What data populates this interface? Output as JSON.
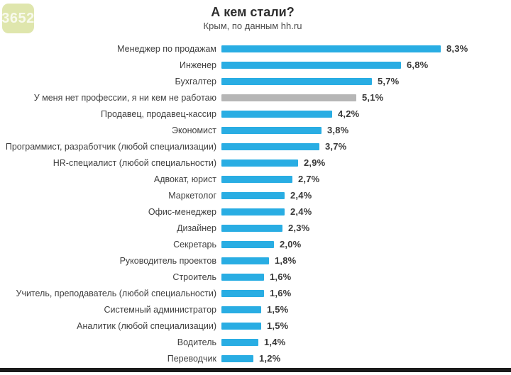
{
  "watermark": {
    "text": "3652"
  },
  "header": {
    "title": "А кем стали?",
    "subtitle": "Крым, по данным hh.ru"
  },
  "chart_data": {
    "type": "bar",
    "orientation": "horizontal",
    "title": "А кем стали?",
    "subtitle": "Крым, по данным hh.ru",
    "unit": "%",
    "xlim": [
      0,
      9
    ],
    "grid": false,
    "legend": false,
    "bar_color": "#29ADE3",
    "highlight_color": "#B6B6B6",
    "highlight_index": 3,
    "categories": [
      "Менеджер по продажам",
      "Инженер",
      "Бухгалтер",
      "У меня нет профессии, я ни кем не работаю",
      "Продавец, продавец-кассир",
      "Экономист",
      "Программист, разработчик (любой специализации)",
      "HR-специалист (любой специальности)",
      "Адвокат, юрист",
      "Маркетолог",
      "Офис-менеджер",
      "Дизайнер",
      "Секретарь",
      "Руководитель проектов",
      "Строитель",
      "Учитель, преподаватель (любой специальности)",
      "Системный администратор",
      "Аналитик (любой специализации)",
      "Водитель",
      "Переводчик"
    ],
    "values": [
      8.3,
      6.8,
      5.7,
      5.1,
      4.2,
      3.8,
      3.7,
      2.9,
      2.7,
      2.4,
      2.4,
      2.3,
      2.0,
      1.8,
      1.6,
      1.6,
      1.5,
      1.5,
      1.4,
      1.2
    ],
    "value_labels": [
      "8,3%",
      "6,8%",
      "5,7%",
      "5,1%",
      "4,2%",
      "3,8%",
      "3,7%",
      "2,9%",
      "2,7%",
      "2,4%",
      "2,4%",
      "2,3%",
      "2,0%",
      "1,8%",
      "1,6%",
      "1,6%",
      "1,5%",
      "1,5%",
      "1,4%",
      "1,2%"
    ]
  }
}
